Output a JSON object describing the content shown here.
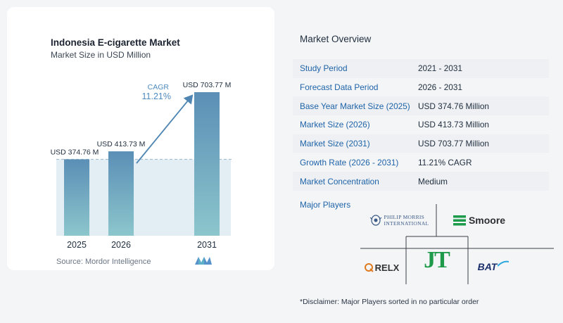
{
  "left": {
    "title": "Indonesia E-cigarette Market",
    "subtitle": "Market Size in USD Million",
    "source": "Source: Mordor Intelligence"
  },
  "chart_data": {
    "type": "bar",
    "categories": [
      "2025",
      "2026",
      "2031"
    ],
    "values": [
      374.76,
      413.73,
      703.77
    ],
    "value_labels": [
      "USD 374.76 M",
      "USD 413.73 M",
      "USD 703.77 M"
    ],
    "cagr_label": "CAGR",
    "cagr_value": "11.21%",
    "title": "Indonesia E-cigarette Market",
    "subtitle": "Market Size in USD Million",
    "colors": {
      "bar_top": "#5b8fb6",
      "bar_bottom": "#8cc6cc",
      "arrow": "#4f86b3",
      "cagr": "#4f8bbf"
    }
  },
  "overview": {
    "title": "Market Overview",
    "rows": [
      {
        "label": "Study Period",
        "value": "2021 - 2031"
      },
      {
        "label": "Forecast Data Period",
        "value": "2026 - 2031"
      },
      {
        "label": "Base Year Market Size (2025)",
        "value": "USD 374.76 Million"
      },
      {
        "label": "Market Size (2026)",
        "value": "USD 413.73 Million"
      },
      {
        "label": "Market Size (2031)",
        "value": "USD 703.77 Million"
      },
      {
        "label": "Growth Rate (2026 - 2031)",
        "value": "11.21% CAGR"
      },
      {
        "label": "Market Concentration",
        "value": "Medium"
      }
    ],
    "players_title": "Major Players",
    "players": {
      "pm_line1": "PHILIP MORRIS",
      "pm_line2": "INTERNATIONAL",
      "smoore": "Smoore",
      "jt": "JT",
      "relx": "RELX",
      "bat": "BAT"
    },
    "disclaimer": "*Disclaimer: Major Players sorted in no particular order"
  }
}
